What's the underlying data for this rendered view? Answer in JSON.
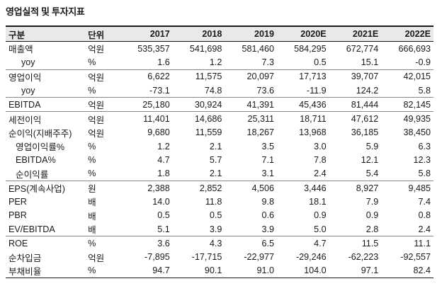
{
  "title": "영업실적 및 투자지표",
  "header": {
    "item": "구분",
    "unit": "단위",
    "years": [
      "2017",
      "2018",
      "2019",
      "2020E",
      "2021E",
      "2022E"
    ]
  },
  "rows": [
    {
      "label": "매출액",
      "unit": "억원",
      "values": [
        "535,357",
        "541,698",
        "581,460",
        "584,295",
        "672,774",
        "666,693"
      ]
    },
    {
      "label": "yoy",
      "unit": "%",
      "values": [
        "1.6",
        "1.2",
        "7.3",
        "0.5",
        "15.1",
        "-0.9"
      ]
    },
    {
      "label": "영업이익",
      "unit": "억원",
      "values": [
        "6,622",
        "11,575",
        "20,097",
        "17,713",
        "39,707",
        "42,015"
      ]
    },
    {
      "label": "yoy",
      "unit": "%",
      "values": [
        "-73.1",
        "74.8",
        "73.6",
        "-11.9",
        "124.2",
        "5.8"
      ]
    },
    {
      "label": "EBITDA",
      "unit": "억원",
      "values": [
        "25,180",
        "30,924",
        "41,391",
        "45,436",
        "81,444",
        "82,145"
      ]
    },
    {
      "label": "세전이익",
      "unit": "억원",
      "values": [
        "11,401",
        "14,686",
        "25,311",
        "18,711",
        "47,612",
        "49,935"
      ]
    },
    {
      "label": "순이익(지배주주)",
      "unit": "억원",
      "values": [
        "9,680",
        "11,559",
        "18,267",
        "13,968",
        "36,185",
        "38,450"
      ]
    },
    {
      "label": "영업이익률%",
      "unit": "%",
      "values": [
        "1.2",
        "2.1",
        "3.5",
        "3.0",
        "5.9",
        "6.3"
      ]
    },
    {
      "label": "EBITDA%",
      "unit": "%",
      "values": [
        "4.7",
        "5.7",
        "7.1",
        "7.8",
        "12.1",
        "12.3"
      ]
    },
    {
      "label": "순이익률",
      "unit": "%",
      "values": [
        "1.8",
        "2.1",
        "3.1",
        "2.4",
        "5.4",
        "5.8"
      ]
    },
    {
      "label": "EPS(계속사업)",
      "unit": "원",
      "values": [
        "2,388",
        "2,852",
        "4,506",
        "3,446",
        "8,927",
        "9,485"
      ]
    },
    {
      "label": "PER",
      "unit": "배",
      "values": [
        "14.0",
        "11.8",
        "9.8",
        "18.1",
        "7.9",
        "7.4"
      ]
    },
    {
      "label": "PBR",
      "unit": "배",
      "values": [
        "0.5",
        "0.5",
        "0.6",
        "0.9",
        "0.9",
        "0.8"
      ]
    },
    {
      "label": "EV/EBITDA",
      "unit": "배",
      "values": [
        "5.1",
        "3.9",
        "3.9",
        "5.0",
        "2.8",
        "2.4"
      ]
    },
    {
      "label": "ROE",
      "unit": "%",
      "values": [
        "3.6",
        "4.3",
        "6.5",
        "4.7",
        "11.5",
        "11.1"
      ]
    },
    {
      "label": "순차입금",
      "unit": "억원",
      "values": [
        "-7,895",
        "-17,715",
        "-22,977",
        "-29,246",
        "-62,223",
        "-92,557"
      ]
    },
    {
      "label": "부채비율",
      "unit": "%",
      "values": [
        "94.7",
        "90.1",
        "91.0",
        "104.0",
        "97.1",
        "82.4"
      ]
    }
  ]
}
